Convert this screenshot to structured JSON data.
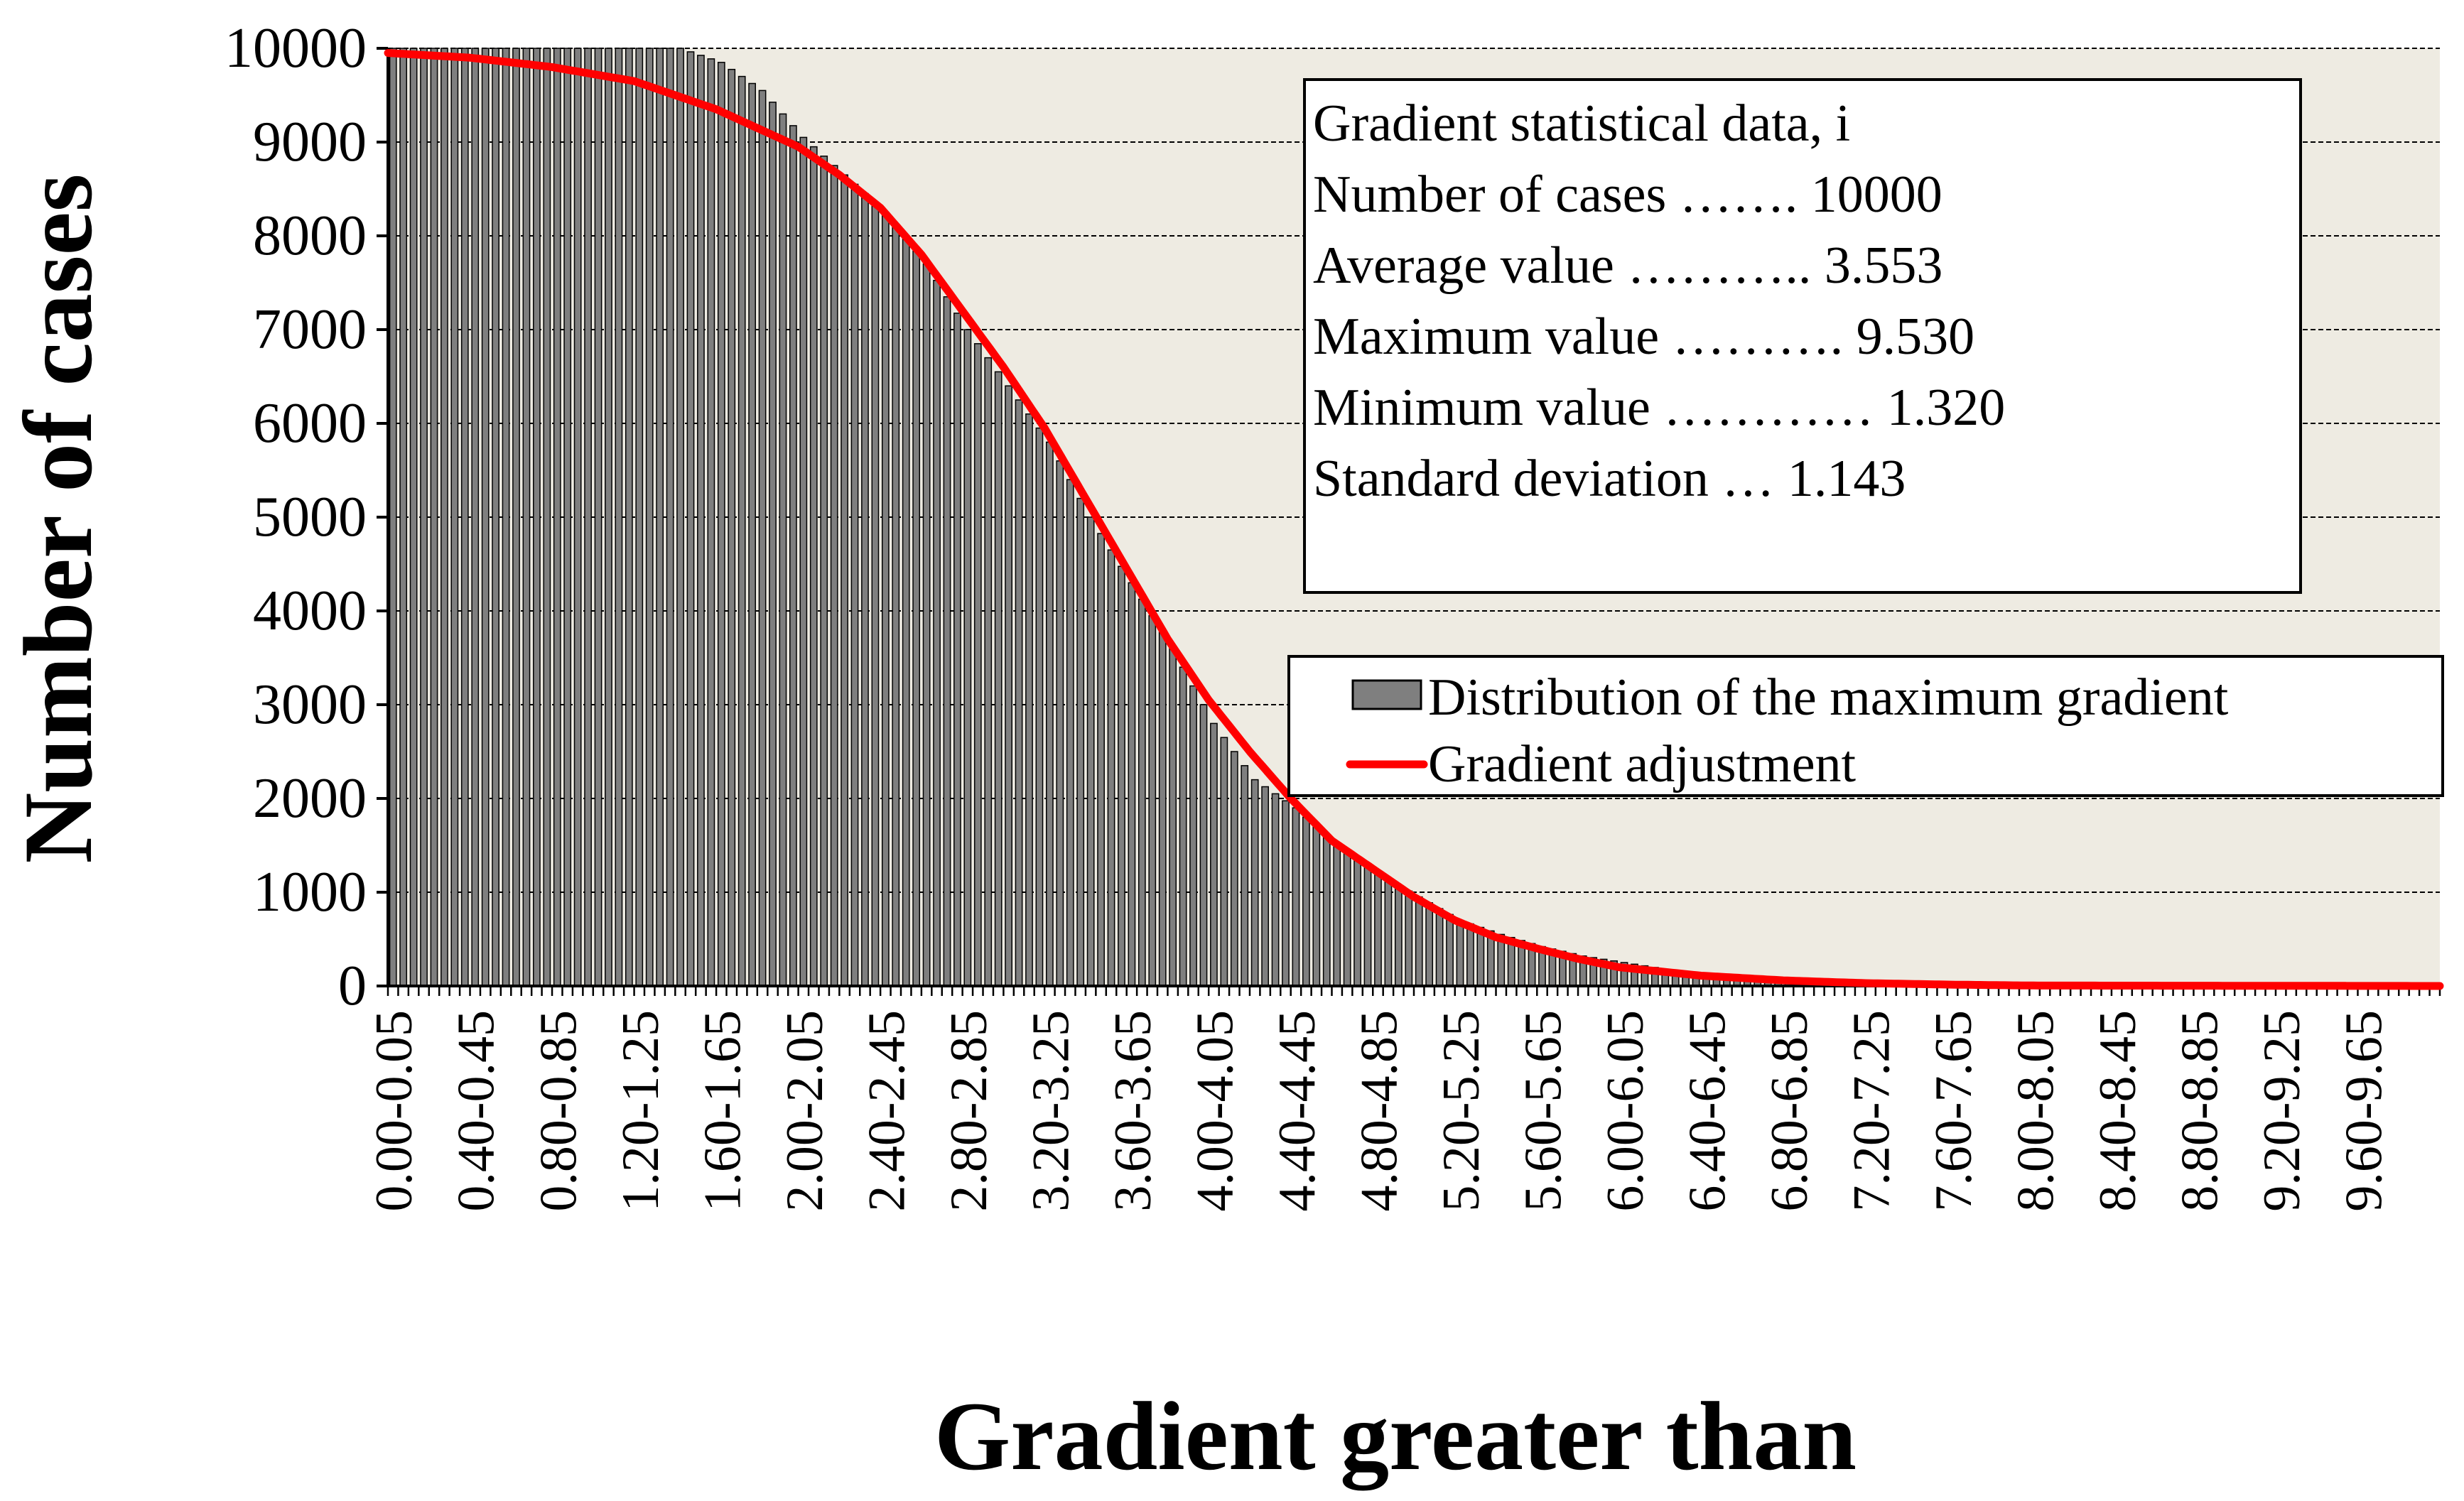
{
  "chart_data": {
    "type": "bar",
    "title": "",
    "xlabel": "Gradient greater than",
    "ylabel": "Number of cases",
    "ylim": [
      0,
      10000
    ],
    "y_ticks": [
      0,
      1000,
      2000,
      3000,
      4000,
      5000,
      6000,
      7000,
      8000,
      9000,
      10000
    ],
    "bin_width": 0.05,
    "x_tick_labels": [
      "0.00-0.05",
      "0.40-0.45",
      "0.80-0.85",
      "1.20-1.25",
      "1.60-1.65",
      "2.00-2.05",
      "2.40-2.45",
      "2.80-2.85",
      "3.20-3.25",
      "3.60-3.65",
      "4.00-4.05",
      "4.40-4.45",
      "4.80-4.85",
      "5.20-5.25",
      "5.60-5.65",
      "6.00-6.05",
      "6.40-6.45",
      "6.80-6.85",
      "7.20-7.25",
      "7.60-7.65",
      "8.00-8.05",
      "8.40-8.45",
      "8.80-8.85",
      "9.20-9.25",
      "9.60-9.65"
    ],
    "series": [
      {
        "name": "Distribution of the maximum gradient",
        "kind": "bar",
        "color": "#7f7f7f",
        "x": [
          0,
          0.4,
          0.8,
          1.2,
          1.4,
          1.6,
          1.8,
          2.0,
          2.2,
          2.4,
          2.6,
          2.8,
          3.0,
          3.2,
          3.4,
          3.6,
          3.8,
          4.0,
          4.2,
          4.4,
          4.6,
          4.8,
          5.0,
          5.2,
          5.4,
          5.6,
          5.8,
          6.0,
          6.2,
          6.4,
          6.6,
          6.8,
          7.0,
          7.2,
          7.6,
          8.0,
          10.0
        ],
        "values": [
          10000,
          10000,
          10000,
          10000,
          10000,
          9850,
          9550,
          9050,
          8650,
          8250,
          7700,
          7000,
          6400,
          5800,
          5000,
          4300,
          3600,
          2800,
          2200,
          1900,
          1500,
          1200,
          950,
          700,
          550,
          420,
          320,
          250,
          180,
          120,
          90,
          70,
          50,
          30,
          15,
          5,
          0
        ]
      },
      {
        "name": "Gradient adjustment",
        "kind": "line",
        "color": "#ff0000",
        "x": [
          0,
          0.4,
          0.8,
          1.2,
          1.6,
          2.0,
          2.2,
          2.4,
          2.6,
          2.8,
          3.0,
          3.2,
          3.4,
          3.6,
          3.8,
          4.0,
          4.2,
          4.4,
          4.6,
          4.8,
          5.0,
          5.2,
          5.4,
          5.6,
          5.8,
          6.0,
          6.4,
          6.8,
          7.2,
          7.6,
          8.0,
          10.0
        ],
        "values": [
          9950,
          9900,
          9800,
          9650,
          9350,
          8950,
          8650,
          8300,
          7800,
          7200,
          6600,
          5950,
          5200,
          4450,
          3700,
          3050,
          2500,
          2000,
          1550,
          1250,
          950,
          700,
          520,
          400,
          290,
          200,
          110,
          60,
          30,
          15,
          5,
          0
        ]
      }
    ],
    "legend": {
      "placement": "right",
      "entries": [
        "Distribution of the maximum gradient",
        "Gradient adjustment"
      ]
    },
    "annotation_lines": [
      "Gradient statistical data, i",
      "Number of cases ……. 10000",
      "Average value ……….. 3.553",
      "Maximum value ………. 9.530",
      "Minimum value ………… 1.320",
      "Standard deviation … 1.143"
    ],
    "colors": {
      "plot_background": "#eeebe2",
      "bar_fill": "#7f7f7f",
      "fit_line": "#ff0000"
    }
  }
}
